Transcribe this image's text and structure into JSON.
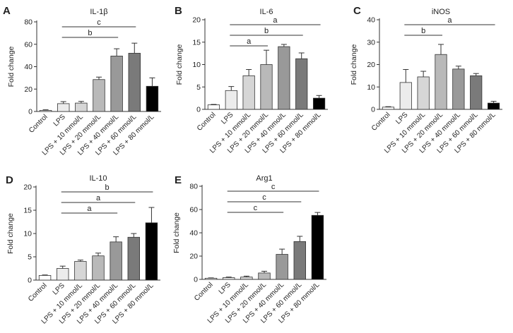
{
  "figure": {
    "y_axis_label": "Fold change",
    "categories": [
      "Control",
      "LPS",
      "LPS + 10 mmol/L",
      "LPS + 20 mmol/L",
      "LPS + 40 mmol/L",
      "LPS + 60 mmol/L",
      "LPS + 80 mmol/L"
    ],
    "bar_colors": [
      "#ffffff",
      "#ececec",
      "#d6d6d6",
      "#b9b9b9",
      "#999999",
      "#7a7a7a",
      "#000000"
    ]
  },
  "chart_data": [
    {
      "panel": "A",
      "title": "IL-1β",
      "type": "bar",
      "ylim": [
        0,
        80
      ],
      "yticks": [
        0,
        20,
        40,
        60,
        80
      ],
      "values": [
        1,
        7,
        7.5,
        28.5,
        49.5,
        52,
        22.5
      ],
      "errors": [
        0.5,
        1.8,
        1.5,
        2.2,
        6.5,
        9,
        7.5
      ],
      "significance": [
        {
          "from": 1,
          "to": 5,
          "label": "c"
        },
        {
          "from": 1,
          "to": 4,
          "label": "b"
        }
      ]
    },
    {
      "panel": "B",
      "title": "IL-6",
      "type": "bar",
      "ylim": [
        0,
        20
      ],
      "yticks": [
        0,
        5,
        10,
        15,
        20
      ],
      "values": [
        1,
        4.2,
        7.5,
        10,
        14,
        11.3,
        2.5
      ],
      "errors": [
        0.1,
        0.9,
        1.4,
        3.2,
        0.5,
        1.3,
        0.6
      ],
      "significance": [
        {
          "from": 1,
          "to": 6,
          "label": "a"
        },
        {
          "from": 1,
          "to": 5,
          "label": "b"
        },
        {
          "from": 1,
          "to": 3,
          "label": "a"
        }
      ]
    },
    {
      "panel": "C",
      "title": "iNOS",
      "type": "bar",
      "ylim": [
        0,
        40
      ],
      "yticks": [
        0,
        10,
        20,
        30,
        40
      ],
      "values": [
        1,
        12,
        14.5,
        24.5,
        18,
        15,
        2.8
      ],
      "errors": [
        0.2,
        5.8,
        2.5,
        4.5,
        1.3,
        1,
        0.8
      ],
      "significance": [
        {
          "from": 1,
          "to": 6,
          "label": "a"
        },
        {
          "from": 1,
          "to": 3,
          "label": "b"
        }
      ]
    },
    {
      "panel": "D",
      "title": "IL-10",
      "type": "bar",
      "ylim": [
        0,
        20
      ],
      "yticks": [
        0,
        5,
        10,
        15,
        20
      ],
      "values": [
        1,
        2.5,
        4,
        5.2,
        8.2,
        9.2,
        12.3
      ],
      "errors": [
        0.1,
        0.5,
        0.3,
        0.6,
        1.1,
        0.8,
        3.3
      ],
      "significance": [
        {
          "from": 1,
          "to": 6,
          "label": "b"
        },
        {
          "from": 1,
          "to": 5,
          "label": "a"
        },
        {
          "from": 1,
          "to": 4,
          "label": "a"
        }
      ]
    },
    {
      "panel": "E",
      "title": "Arg1",
      "type": "bar",
      "ylim": [
        0,
        80
      ],
      "yticks": [
        0,
        20,
        40,
        60,
        80
      ],
      "values": [
        1,
        1.5,
        2,
        5.5,
        21.5,
        32.5,
        55
      ],
      "errors": [
        0.3,
        0.5,
        0.8,
        1.5,
        4.5,
        4.5,
        2.5
      ],
      "significance": [
        {
          "from": 1,
          "to": 6,
          "label": "c"
        },
        {
          "from": 1,
          "to": 5,
          "label": "c"
        },
        {
          "from": 1,
          "to": 4,
          "label": "c"
        }
      ]
    }
  ]
}
